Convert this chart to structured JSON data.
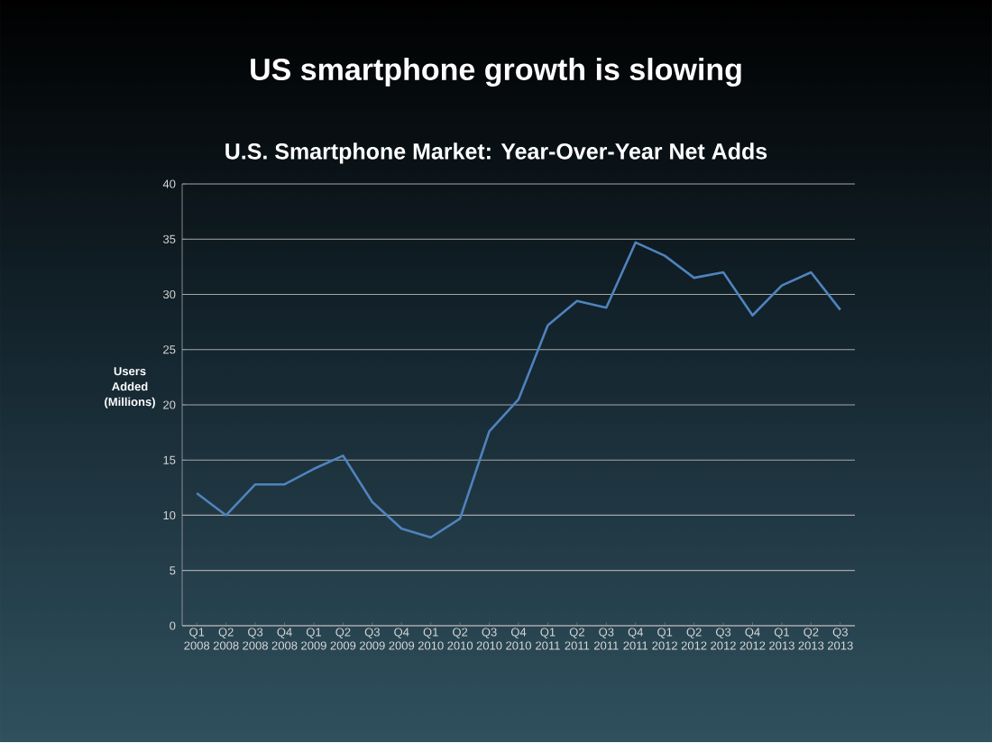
{
  "chart_data": {
    "type": "line",
    "title": "US smartphone growth is slowing",
    "subtitle": "U.S. Smartphone Market: Year-Over-Year Net Adds",
    "ylabel": "Users Added (Millions)",
    "categories": [
      "Q1 2008",
      "Q2 2008",
      "Q3 2008",
      "Q4 2008",
      "Q1 2009",
      "Q2 2009",
      "Q3 2009",
      "Q4 2009",
      "Q1 2010",
      "Q2 2010",
      "Q3 2010",
      "Q4 2010",
      "Q1 2011",
      "Q2 2011",
      "Q3 2011",
      "Q4 2011",
      "Q1 2012",
      "Q2 2012",
      "Q3 2012",
      "Q4 2012",
      "Q1 2013",
      "Q2 2013",
      "Q3 2013"
    ],
    "values": [
      12,
      10,
      12.8,
      12.8,
      14.2,
      15.4,
      11.2,
      8.8,
      8.0,
      9.7,
      17.6,
      20.5,
      27.2,
      29.4,
      28.8,
      34.7,
      33.5,
      31.5,
      32,
      28.1,
      30.8,
      32,
      28.6
    ],
    "color": "#4f83bd",
    "ylim": [
      0,
      40
    ],
    "yticks": [
      0,
      5,
      10,
      15,
      20,
      25,
      30,
      35,
      40
    ],
    "grid": "y",
    "marker": "none",
    "line_style": "solid"
  }
}
